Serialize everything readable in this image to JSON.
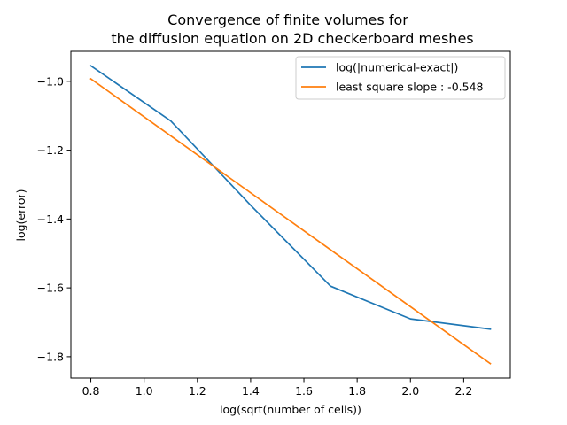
{
  "chart_data": {
    "type": "line",
    "title_lines": [
      "Convergence of finite volumes for",
      "the diffusion equation on 2D checkerboard meshes"
    ],
    "xlabel": "log(sqrt(number of cells))",
    "ylabel": "log(error)",
    "xlim": [
      0.725,
      2.375
    ],
    "ylim": [
      -1.862,
      -0.913
    ],
    "xticks": [
      0.8,
      1.0,
      1.2,
      1.4,
      1.6,
      1.8,
      2.0,
      2.2
    ],
    "xtick_labels": [
      "0.8",
      "1.0",
      "1.2",
      "1.4",
      "1.6",
      "1.8",
      "2.0",
      "2.2"
    ],
    "yticks": [
      -1.0,
      -1.2,
      -1.4,
      -1.6,
      -1.8
    ],
    "ytick_labels": [
      "−1.0",
      "−1.2",
      "−1.4",
      "−1.6",
      "−1.8"
    ],
    "legend_placement": "upper-right",
    "grid": false,
    "series": [
      {
        "name": "log(|numerical-exact|)",
        "color": "#1f77b4",
        "x": [
          0.8,
          1.1,
          1.4,
          1.7,
          2.0,
          2.3
        ],
        "y": [
          -0.955,
          -1.115,
          -1.36,
          -1.595,
          -1.69,
          -1.72
        ]
      },
      {
        "name": "least square slope : -0.548",
        "color": "#ff7f0e",
        "x": [
          0.8,
          2.3
        ],
        "y": [
          -0.993,
          -1.82
        ]
      }
    ]
  }
}
